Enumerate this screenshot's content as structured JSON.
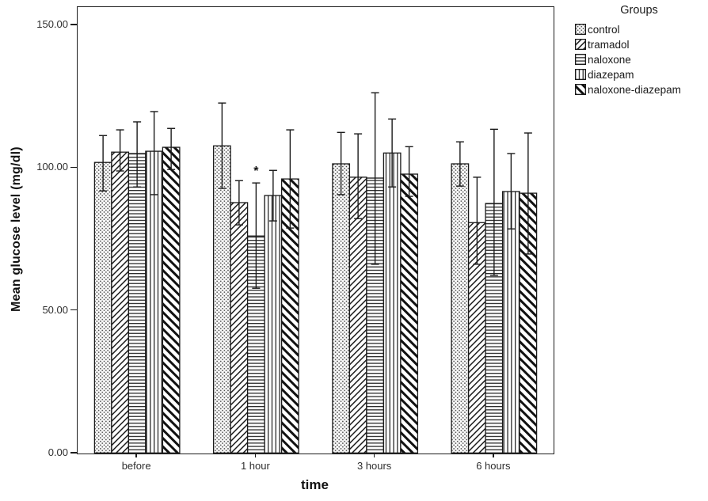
{
  "y_axis": {
    "title": "Mean glucose level (mg/dl)"
  },
  "x_axis": {
    "title": "time"
  },
  "legend": {
    "title": "Groups",
    "items": [
      "control",
      "tramadol",
      "naloxone",
      "diazepam",
      "naloxone-diazepam"
    ]
  },
  "chart_data": {
    "type": "bar",
    "title": "",
    "xlabel": "time",
    "ylabel": "Mean glucose level (mg/dl)",
    "ylim": [
      0,
      156.4
    ],
    "grid": false,
    "legend_title": "Groups",
    "legend_position": "right-outside-top",
    "error_bars": true,
    "yticks": [
      {
        "value": 150,
        "label": "150.00"
      },
      {
        "value": 100,
        "label": "100.00"
      },
      {
        "value": 50,
        "label": "50.00"
      },
      {
        "value": 0,
        "label": "0.00"
      }
    ],
    "categories": [
      "before",
      "1 hour",
      "3 hours",
      "6 hours"
    ],
    "series": [
      {
        "name": "control",
        "pattern": "dots",
        "means": [
          102.0,
          107.8,
          101.5,
          101.5
        ],
        "err_low": [
          92.0,
          92.9,
          90.7,
          93.7
        ],
        "err_high": [
          111.4,
          122.8,
          112.5,
          109.2
        ]
      },
      {
        "name": "tramadol",
        "pattern": "thin-diagonal-up",
        "means": [
          105.6,
          87.9,
          96.8,
          80.9
        ],
        "err_low": [
          99.0,
          80.1,
          82.3,
          66.3
        ],
        "err_high": [
          113.4,
          95.6,
          112.0,
          96.8
        ]
      },
      {
        "name": "naloxone",
        "pattern": "horizontal-lines",
        "means": [
          105.1,
          76.2,
          96.5,
          87.6
        ],
        "err_low": [
          93.4,
          57.9,
          66.3,
          62.4
        ],
        "err_high": [
          116.2,
          94.8,
          126.4,
          113.6
        ]
      },
      {
        "name": "diazepam",
        "pattern": "vertical-lines",
        "means": [
          105.9,
          90.4,
          105.3,
          91.8
        ],
        "err_low": [
          90.7,
          81.5,
          93.4,
          78.7
        ],
        "err_high": [
          119.8,
          99.2,
          117.2,
          105.1
        ]
      },
      {
        "name": "naloxone-diazepam",
        "pattern": "bold-diagonal-down",
        "means": [
          107.3,
          96.2,
          97.9,
          91.2
        ],
        "err_low": [
          99.5,
          79.0,
          90.1,
          69.9
        ],
        "err_high": [
          113.9,
          113.4,
          107.5,
          112.3
        ]
      }
    ],
    "annotations": [
      {
        "text": "*",
        "category": "1 hour",
        "series": "naloxone",
        "y_value": 99
      }
    ],
    "bar_fill": "#ffffff",
    "line_color": "#1a1a1a"
  }
}
